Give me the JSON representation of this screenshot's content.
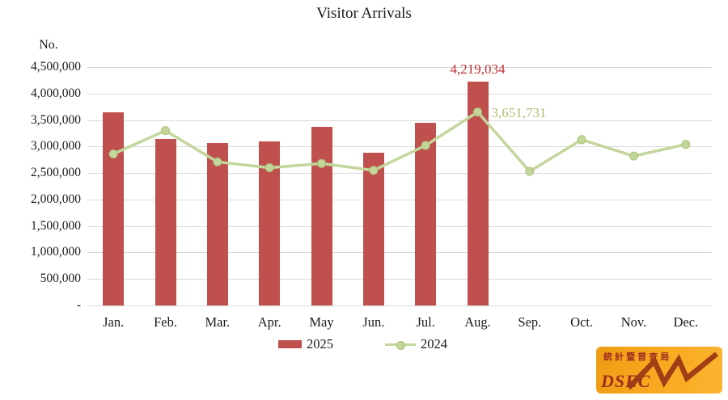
{
  "title": "Visitor Arrivals",
  "y_axis_unit": "No.",
  "chart_data": {
    "type": "bar",
    "subtype": "bar+line combo",
    "categories": [
      "Jan.",
      "Feb.",
      "Mar.",
      "Apr.",
      "May",
      "Jun.",
      "Jul.",
      "Aug.",
      "Sep.",
      "Oct.",
      "Nov.",
      "Dec."
    ],
    "series": [
      {
        "name": "2025",
        "type": "bar",
        "color": "#C0504D",
        "values": [
          3650000,
          3140000,
          3060000,
          3090000,
          3370000,
          2880000,
          3450000,
          4219034,
          null,
          null,
          null,
          null
        ]
      },
      {
        "name": "2024",
        "type": "line",
        "color": "#C3D69B",
        "marker_stroke": "#ADC278",
        "values": [
          2860000,
          3300000,
          2710000,
          2600000,
          2680000,
          2550000,
          3020000,
          3651731,
          2530000,
          3130000,
          2820000,
          3040000
        ]
      }
    ],
    "annotations": [
      {
        "text": "4,219,034",
        "series": "2025",
        "month_index": 7,
        "value": 4219034,
        "color": "#BE3034",
        "placement": "above"
      },
      {
        "text": "3,651,731",
        "series": "2024",
        "month_index": 7,
        "value": 3651731,
        "color": "#ABC173",
        "placement": "right"
      }
    ],
    "title": "Visitor Arrivals",
    "xlabel": "",
    "ylabel": "No.",
    "ylim": [
      0,
      4500000
    ],
    "grid": true,
    "legend_position": "bottom",
    "yticks": [
      {
        "v": 0,
        "label": "-"
      },
      {
        "v": 500000,
        "label": "500,000"
      },
      {
        "v": 1000000,
        "label": "1,000,000"
      },
      {
        "v": 1500000,
        "label": "1,500,000"
      },
      {
        "v": 2000000,
        "label": "2,000,000"
      },
      {
        "v": 2500000,
        "label": "2,500,000"
      },
      {
        "v": 3000000,
        "label": "3,000,000"
      },
      {
        "v": 3500000,
        "label": "3,500,000"
      },
      {
        "v": 4000000,
        "label": "4,000,000"
      },
      {
        "v": 4500000,
        "label": "4,500,000"
      }
    ]
  },
  "legend": {
    "items": [
      {
        "label": "2025",
        "swatch": "bar",
        "color": "#C0504D"
      },
      {
        "label": "2024",
        "swatch": "line-marker",
        "color": "#C3D69B"
      }
    ]
  },
  "logo": {
    "chinese_text": "統 計 暨 普 查 局",
    "latin_text": "DSEC",
    "background_color": "#F8A81F",
    "text_color": "#9B2D22",
    "zigzag_color": "#A23E16"
  },
  "colors": {
    "grid": "#D9D9D9",
    "text": "#1A1A1A",
    "background": "#FFFFFF"
  }
}
